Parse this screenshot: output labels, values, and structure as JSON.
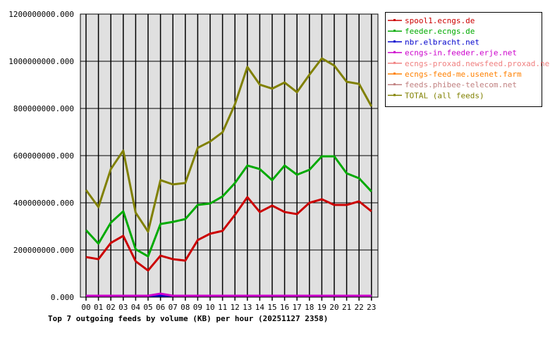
{
  "chart_data": {
    "type": "line",
    "title": "Top 7 outgoing feeds by volume (KB) per hour (20251127 2358)",
    "xlabel": "",
    "ylabel": "",
    "ylim": [
      0,
      1200000000
    ],
    "yticks": [
      "0.000",
      "200000000.000",
      "400000000.000",
      "600000000.000",
      "800000000.000",
      "1000000000.000",
      "1200000000.000"
    ],
    "ytick_values": [
      0,
      200000000,
      400000000,
      600000000,
      800000000,
      1000000000,
      1200000000
    ],
    "categories": [
      "00",
      "01",
      "02",
      "03",
      "04",
      "05",
      "06",
      "07",
      "08",
      "09",
      "10",
      "11",
      "12",
      "13",
      "14",
      "15",
      "16",
      "17",
      "18",
      "19",
      "20",
      "21",
      "22",
      "23"
    ],
    "grid": true,
    "legend_position": "right",
    "background": "#e0e0e0",
    "series": [
      {
        "name": "spool1.ecngs.de",
        "color": "#cc0000",
        "values": [
          170000000,
          161000000,
          230000000,
          260000000,
          152000000,
          113000000,
          176000000,
          161000000,
          155000000,
          242000000,
          269000000,
          281000000,
          349000000,
          424000000,
          361000000,
          388000000,
          361000000,
          352000000,
          400000000,
          415000000,
          391000000,
          391000000,
          406000000,
          364000000
        ]
      },
      {
        "name": "feeder.ecngs.de",
        "color": "#00aa00",
        "values": [
          284000000,
          227000000,
          316000000,
          364000000,
          203000000,
          173000000,
          310000000,
          319000000,
          331000000,
          391000000,
          397000000,
          427000000,
          484000000,
          558000000,
          543000000,
          496000000,
          558000000,
          519000000,
          540000000,
          597000000,
          597000000,
          525000000,
          504000000,
          448000000
        ]
      },
      {
        "name": "nbr.elbracht.net",
        "color": "#0000cc",
        "values": [
          0,
          0,
          0,
          0,
          0,
          0,
          0,
          0,
          0,
          0,
          0,
          0,
          0,
          0,
          0,
          0,
          0,
          0,
          0,
          0,
          0,
          0,
          0,
          0
        ]
      },
      {
        "name": "ecngs-in.feeder.erje.net",
        "color": "#cc00cc",
        "values": [
          0,
          0,
          0,
          0,
          0,
          3000000,
          15000000,
          3000000,
          0,
          0,
          0,
          0,
          0,
          0,
          0,
          0,
          0,
          0,
          0,
          0,
          0,
          0,
          0,
          0
        ]
      },
      {
        "name": "ecngs-proxad.newsfeed.proxad.net",
        "color": "#f08080",
        "values": [
          0,
          0,
          0,
          0,
          0,
          0,
          0,
          0,
          0,
          0,
          0,
          0,
          0,
          0,
          0,
          0,
          0,
          0,
          0,
          0,
          0,
          0,
          0,
          0
        ]
      },
      {
        "name": "ecngs-feed-me.usenet.farm",
        "color": "#ff8000",
        "values": [
          0,
          0,
          0,
          0,
          0,
          0,
          0,
          0,
          0,
          0,
          0,
          0,
          0,
          0,
          0,
          0,
          0,
          0,
          0,
          0,
          0,
          0,
          0,
          0
        ]
      },
      {
        "name": "feeds.phibee-telecom.net",
        "color": "#c08080",
        "values": [
          0,
          0,
          0,
          0,
          0,
          0,
          0,
          0,
          0,
          0,
          0,
          0,
          0,
          0,
          0,
          0,
          0,
          0,
          0,
          0,
          0,
          0,
          0,
          0
        ]
      },
      {
        "name": "TOTAL (all feeds)",
        "color": "#808000",
        "values": [
          454000000,
          382000000,
          543000000,
          621000000,
          358000000,
          278000000,
          496000000,
          478000000,
          484000000,
          633000000,
          660000000,
          699000000,
          818000000,
          976000000,
          901000000,
          884000000,
          910000000,
          869000000,
          943000000,
          1012000000,
          982000000,
          913000000,
          904000000,
          809000000
        ]
      }
    ]
  }
}
